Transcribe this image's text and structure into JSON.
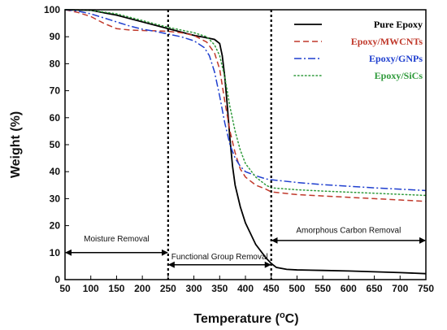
{
  "chart_data": {
    "type": "line",
    "xlabel_main": "Temperature (",
    "xlabel_sup": "o",
    "xlabel_tail": "C)",
    "ylabel": "Weight (%)",
    "xlim": [
      50,
      750
    ],
    "ylim": [
      0,
      100
    ],
    "xticks": [
      "50",
      "100",
      "150",
      "200",
      "250",
      "300",
      "350",
      "400",
      "450",
      "500",
      "550",
      "600",
      "650",
      "700",
      "750"
    ],
    "yticks": [
      "0",
      "10",
      "20",
      "30",
      "40",
      "50",
      "60",
      "70",
      "80",
      "90",
      "100"
    ],
    "legend_position": "top-right",
    "series": [
      {
        "name": "Pure Epoxy",
        "color": "#000000",
        "dash": "solid",
        "x": [
          50,
          100,
          150,
          200,
          250,
          300,
          320,
          340,
          350,
          355,
          360,
          365,
          370,
          375,
          380,
          390,
          400,
          420,
          440,
          450,
          460,
          480,
          500,
          550,
          600,
          650,
          700,
          750
        ],
        "y": [
          100,
          99.8,
          98,
          95.5,
          93,
          90.5,
          89.8,
          89,
          87.5,
          83,
          75,
          64,
          52,
          42,
          35,
          27,
          21,
          13,
          8,
          6,
          4.5,
          3.8,
          3.6,
          3.4,
          3.2,
          2.9,
          2.6,
          2.2
        ]
      },
      {
        "name": "Epoxy/MWCNTs",
        "color": "#c0392b",
        "dash": "dashed",
        "x": [
          50,
          75,
          100,
          125,
          150,
          175,
          200,
          225,
          250,
          275,
          300,
          325,
          340,
          350,
          360,
          370,
          380,
          390,
          400,
          420,
          440,
          450,
          500,
          550,
          600,
          650,
          700,
          750
        ],
        "y": [
          100,
          99,
          97.5,
          95,
          93,
          92.5,
          92.3,
          92.2,
          92,
          91.5,
          90.5,
          88,
          84,
          78,
          66,
          55,
          47,
          41,
          38,
          35,
          33.5,
          32.5,
          31.5,
          31,
          30.5,
          30,
          29.5,
          29
        ]
      },
      {
        "name": "Epoxy/GNPs",
        "color": "#1f3fcf",
        "dash": "dashdot",
        "x": [
          50,
          75,
          100,
          125,
          150,
          175,
          200,
          225,
          250,
          275,
          300,
          320,
          330,
          340,
          350,
          360,
          370,
          380,
          390,
          400,
          420,
          440,
          450,
          500,
          550,
          600,
          650,
          700,
          750
        ],
        "y": [
          100,
          99.5,
          98.5,
          97,
          95.5,
          94,
          92.8,
          92,
          91,
          90,
          88.5,
          86,
          83,
          77,
          68,
          58,
          50,
          45,
          42,
          40,
          38.5,
          37.3,
          37,
          36,
          35.2,
          34.6,
          34,
          33.5,
          33
        ]
      },
      {
        "name": "Epoxy/SiCs",
        "color": "#2e9a3a",
        "dash": "dotted",
        "x": [
          50,
          100,
          150,
          200,
          250,
          300,
          325,
          340,
          350,
          360,
          370,
          380,
          390,
          400,
          420,
          440,
          450,
          500,
          550,
          600,
          650,
          700,
          750
        ],
        "y": [
          100,
          99.8,
          98.5,
          96,
          93.5,
          91.5,
          90,
          87,
          83,
          75,
          64,
          55,
          48,
          43,
          38,
          35,
          34,
          33.3,
          32.8,
          32.4,
          32,
          31.6,
          31.2
        ]
      }
    ],
    "boundaries": [
      250,
      450
    ],
    "annotations": [
      {
        "text": "Moisture Removal",
        "from": 50,
        "to": 250,
        "y": 10,
        "label_y": 14.2
      },
      {
        "text": "Functional Group Removal",
        "from": 250,
        "to": 450,
        "y": 5.5,
        "label_y": 7.6
      },
      {
        "text": "Amorphous Carbon Removal",
        "from": 450,
        "to": 750,
        "y": 14.5,
        "label_y": 17.3
      }
    ]
  }
}
